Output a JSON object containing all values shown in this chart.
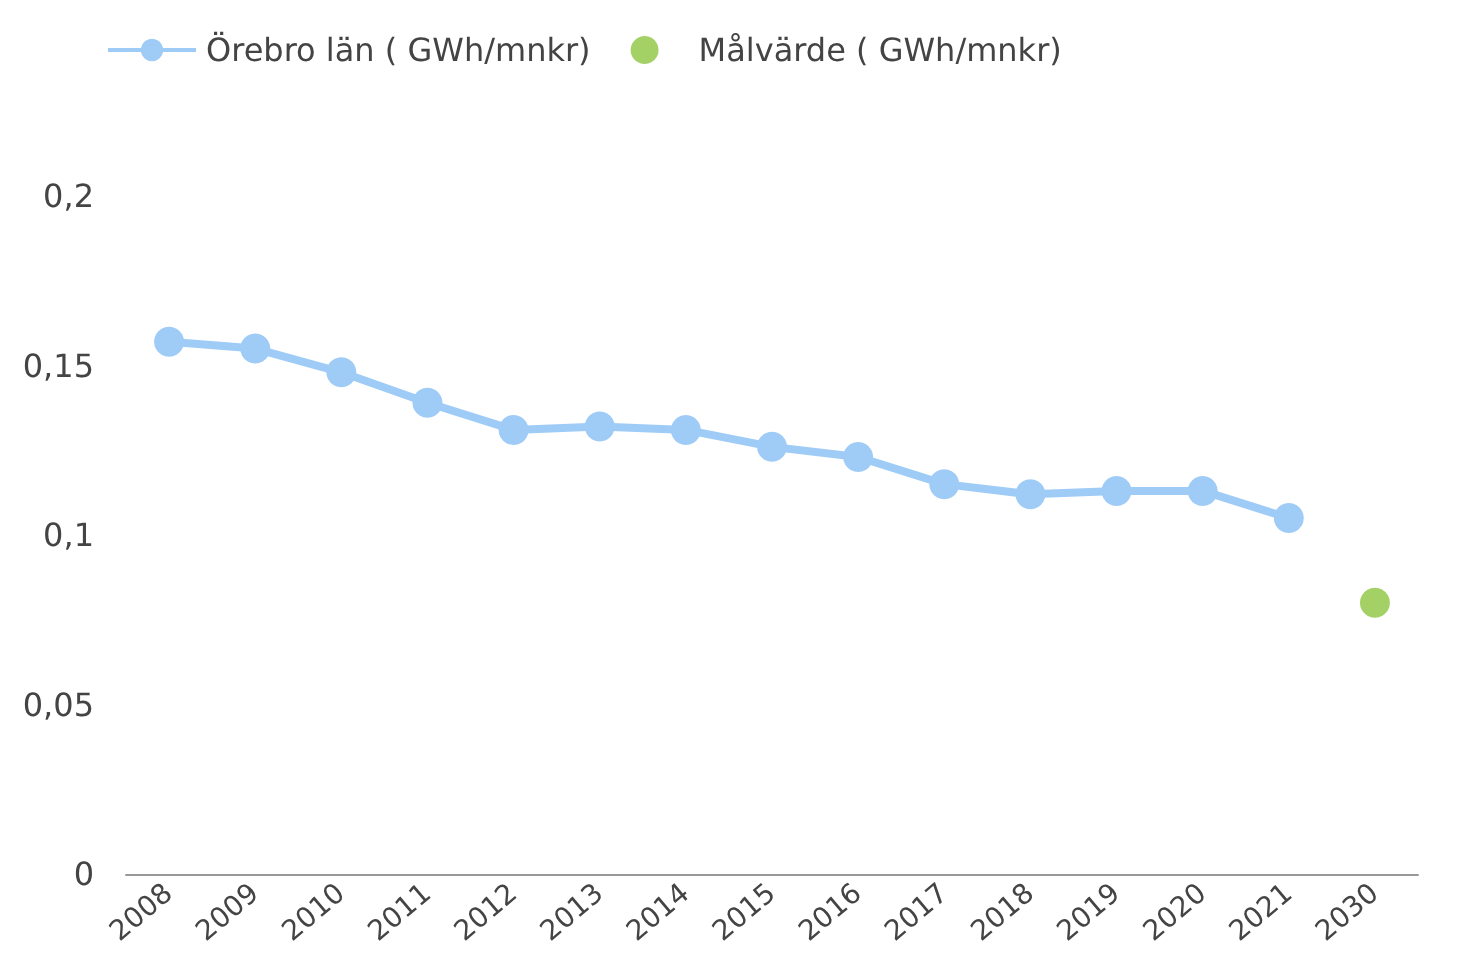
{
  "chart_data": {
    "type": "line",
    "categories": [
      "2008",
      "2009",
      "2010",
      "2011",
      "2012",
      "2013",
      "2014",
      "2015",
      "2016",
      "2017",
      "2018",
      "2019",
      "2020",
      "2021",
      "2030"
    ],
    "series": [
      {
        "name": "Örebro län ( GWh/mnkr)",
        "color": "#9fcbf7",
        "values": [
          0.157,
          0.155,
          0.148,
          0.139,
          0.131,
          0.132,
          0.131,
          0.126,
          0.123,
          0.115,
          0.112,
          0.113,
          0.113,
          0.105,
          null
        ]
      },
      {
        "name": "Målvärde ( GWh/mnkr)",
        "color": "#8cc63f",
        "type": "scatter",
        "values": [
          null,
          null,
          null,
          null,
          null,
          null,
          null,
          null,
          null,
          null,
          null,
          null,
          null,
          null,
          0.08
        ]
      }
    ],
    "ylim": [
      0,
      0.2
    ],
    "yticks": [
      {
        "value": 0,
        "label": "0"
      },
      {
        "value": 0.05,
        "label": "0,05"
      },
      {
        "value": 0.1,
        "label": "0,1"
      },
      {
        "value": 0.15,
        "label": "0,15"
      },
      {
        "value": 0.2,
        "label": "0,2"
      }
    ],
    "grid": false,
    "legend": "top left",
    "marker": "circle",
    "line_style": "solid"
  }
}
